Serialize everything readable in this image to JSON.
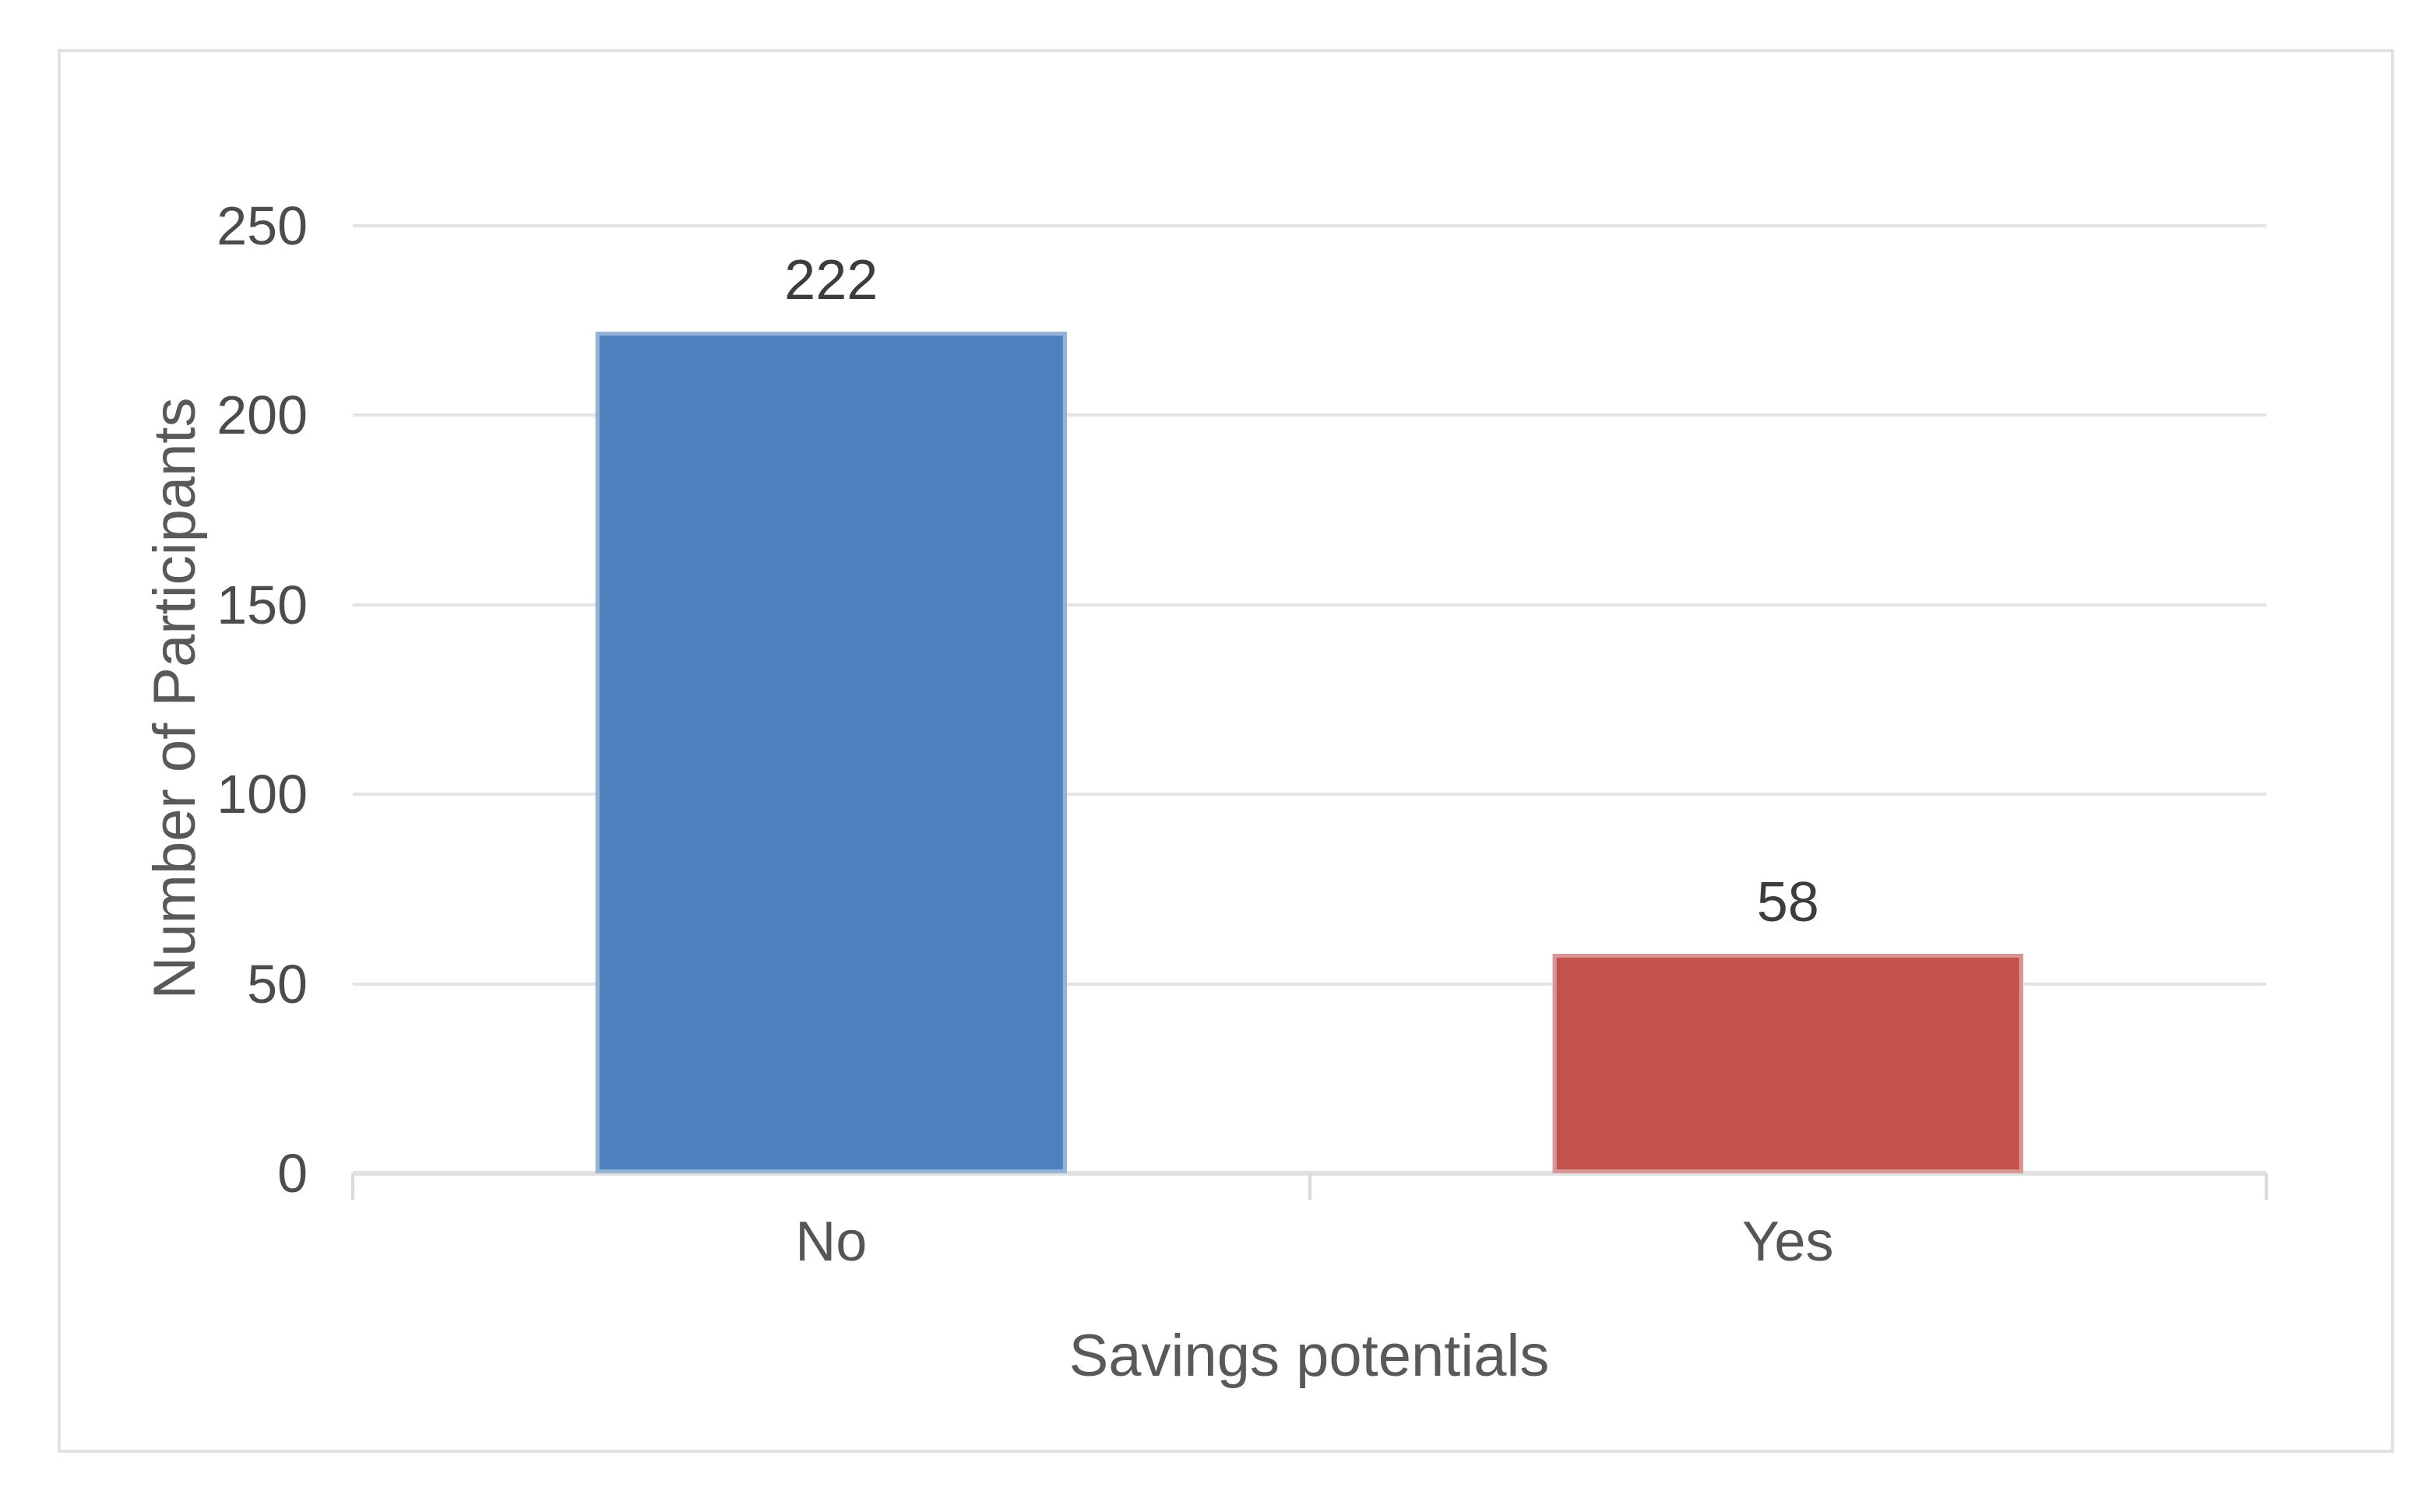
{
  "chart_data": {
    "type": "bar",
    "categories": [
      "No",
      "Yes"
    ],
    "values": [
      222,
      58
    ],
    "data_labels": [
      "222",
      "58"
    ],
    "title": "",
    "xlabel": "Savings potentials",
    "ylabel": "Number of Participants",
    "ylim": [
      0,
      250
    ],
    "yticks": [
      0,
      50,
      100,
      150,
      200,
      250
    ],
    "grid": "horizontal",
    "legend": "none",
    "bar_colors": [
      "#4E80BD",
      "#C5514D"
    ],
    "bar_border_colors": [
      "#95B3D7",
      "#D99694"
    ]
  },
  "colors": {
    "background": "#FFFFFF",
    "frame_border": "#E2E2E2",
    "gridline": "#E3E3E3",
    "axis_line": "#E0E0E0",
    "tick_label_text": "#4C4C4C",
    "data_label_text": "#3D3D3D",
    "axis_title_text": "#595959"
  }
}
